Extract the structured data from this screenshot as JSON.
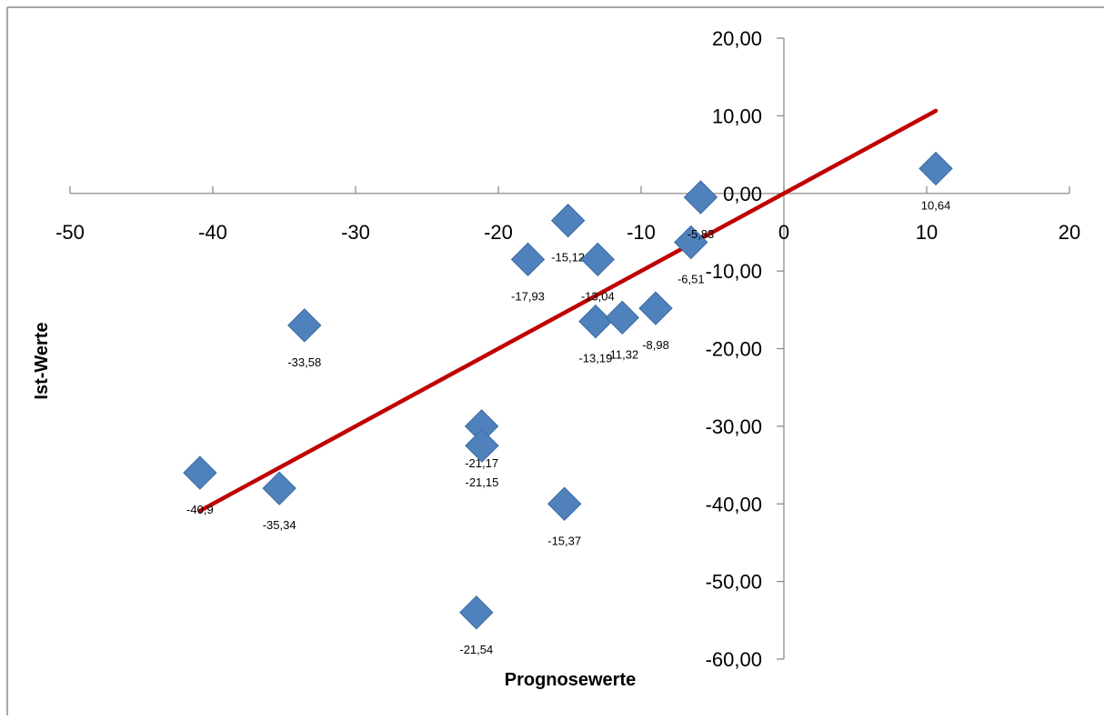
{
  "chart_data": {
    "type": "scatter",
    "title": "",
    "xlabel": "Prognosewerte",
    "ylabel": "Ist-Werte",
    "xlim": [
      -50,
      20
    ],
    "ylim": [
      -60,
      20
    ],
    "x_ticks": [
      -50,
      -40,
      -30,
      -20,
      -10,
      0,
      10,
      20
    ],
    "x_tick_labels": [
      "-50",
      "-40",
      "-30",
      "-20",
      "-10",
      "0",
      "10",
      "20"
    ],
    "y_ticks": [
      20,
      10,
      0,
      -10,
      -20,
      -30,
      -40,
      -50,
      -60
    ],
    "y_tick_labels": [
      "20,00",
      "10,00",
      "0,00",
      "-10,00",
      "-20,00",
      "-30,00",
      "-40,00",
      "-50,00",
      "-60,00"
    ],
    "grid": false,
    "legend": "none",
    "colors": {
      "points": "#4f81bd",
      "trendline": "#c00000"
    },
    "series": [
      {
        "marker": "diamond",
        "points": [
          {
            "x": -40.9,
            "y": -36.0,
            "label": "-40,9"
          },
          {
            "x": -35.34,
            "y": -38.0,
            "label": "-35,34"
          },
          {
            "x": -33.58,
            "y": -17.0,
            "label": "-33,58"
          },
          {
            "x": -21.54,
            "y": -54.0,
            "label": "-21,54"
          },
          {
            "x": -21.17,
            "y": -30.0,
            "label": "-21,17"
          },
          {
            "x": -21.15,
            "y": -32.5,
            "label": "-21,15"
          },
          {
            "x": -17.93,
            "y": -8.5,
            "label": "-17,93"
          },
          {
            "x": -15.37,
            "y": -40.0,
            "label": "-15,37"
          },
          {
            "x": -15.12,
            "y": -3.5,
            "label": "-15,12"
          },
          {
            "x": -13.19,
            "y": -16.5,
            "label": "-13,19"
          },
          {
            "x": -13.04,
            "y": -8.5,
            "label": "-13,04"
          },
          {
            "x": -11.32,
            "y": -16.0,
            "label": "-11,32"
          },
          {
            "x": -8.98,
            "y": -14.8,
            "label": "-8,98"
          },
          {
            "x": -6.51,
            "y": -6.3,
            "label": "-6,51"
          },
          {
            "x": -5.83,
            "y": -0.5,
            "label": "-5,83"
          },
          {
            "x": 10.64,
            "y": 3.2,
            "label": "10,64"
          }
        ]
      }
    ],
    "trendline": {
      "x": [
        -40.9,
        10.64
      ],
      "y": [
        -40.9,
        10.64
      ]
    }
  }
}
